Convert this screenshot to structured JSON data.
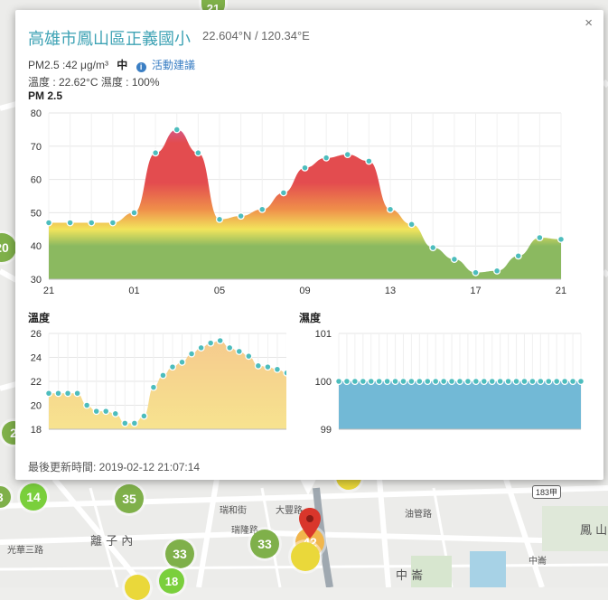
{
  "popup": {
    "title": "高雄市鳳山區正義國小",
    "coords": "22.604°N / 120.34°E",
    "pm_line": "PM2.5 :42 μg/m³",
    "level": "中",
    "advice_link": "活動建議",
    "weather_line": "溫度 : 22.62°C 濕度 : 100%",
    "pm_chart_label": "PM 2.5",
    "temp_chart_label": "溫度",
    "hum_chart_label": "濕度",
    "updated": "最後更新時間: 2019-02-12 21:07:14",
    "close_label": "×"
  },
  "map": {
    "labels": [
      "瑞隆路",
      "瑞和街",
      "大豐路",
      "離 子 內",
      "中 崙",
      "鳳 山",
      "油管路",
      "中崙",
      "183甲",
      "光華三路"
    ],
    "clusters": [
      "21",
      "33",
      "35",
      "14",
      "33",
      "18",
      "33",
      "42",
      "20",
      "2",
      "3"
    ],
    "marker_value": "42",
    "colors": {
      "green": "#7fb04a",
      "bright_green": "#7acf3c",
      "yellow": "#ead83a",
      "orange": "#f1b64c",
      "red_marker": "#d9362b"
    }
  },
  "chart_data": [
    {
      "type": "area",
      "title": "PM 2.5",
      "x_tick_labels": [
        "21",
        "01",
        "05",
        "09",
        "13",
        "17",
        "21"
      ],
      "ylim": [
        30,
        80
      ],
      "y_ticks": [
        30,
        40,
        50,
        60,
        70,
        80
      ],
      "series": [
        {
          "values": [
            47,
            47,
            47,
            47,
            50,
            68,
            75,
            68,
            48,
            49,
            51,
            56,
            63.5,
            66.5,
            67.5,
            65.5,
            51,
            46.5,
            39.5,
            36,
            32,
            32.5,
            37,
            42.5,
            42
          ]
        }
      ],
      "color_bands": {
        "green": "#8bb960",
        "yellow": "#f2e45c",
        "orange": "#ef8f4a",
        "red": "#e34c4f",
        "purple": "#c067c8"
      },
      "point_color": "#4dbdbd"
    },
    {
      "type": "area",
      "title": "溫度",
      "ylim": [
        18,
        26
      ],
      "y_ticks": [
        18,
        20,
        22,
        24,
        26
      ],
      "series": [
        {
          "values": [
            21,
            21,
            21,
            21,
            20,
            19.5,
            19.5,
            19.3,
            18.5,
            18.5,
            19.1,
            21.5,
            22.5,
            23.2,
            23.6,
            24.3,
            24.8,
            25.2,
            25.4,
            24.8,
            24.5,
            24.1,
            23.3,
            23.2,
            23,
            22.7,
            22.5
          ]
        }
      ],
      "fill_color": "#f5c98d",
      "point_color": "#4dbdbd"
    },
    {
      "type": "area",
      "title": "濕度",
      "ylim": [
        99,
        101
      ],
      "y_ticks": [
        99,
        100,
        101
      ],
      "series": [
        {
          "values": [
            100,
            100,
            100,
            100,
            100,
            100,
            100,
            100,
            100,
            100,
            100,
            100,
            100,
            100,
            100,
            100,
            100,
            100,
            100,
            100,
            100,
            100,
            100,
            100,
            100,
            100,
            100,
            100,
            100,
            100,
            100
          ]
        }
      ],
      "fill_color": "#72b9d6",
      "point_color": "#4dbdbd"
    }
  ]
}
